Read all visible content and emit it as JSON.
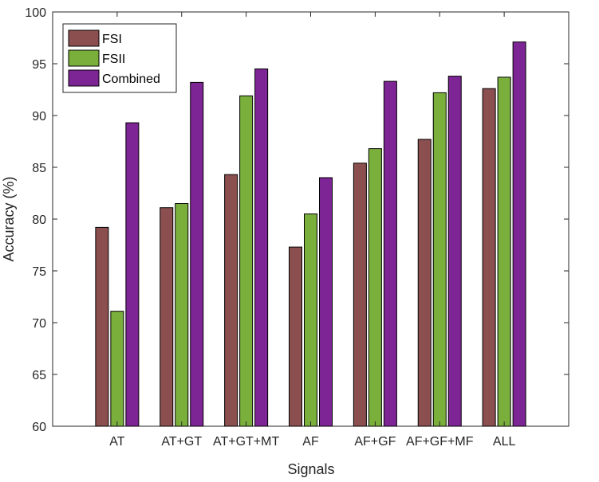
{
  "chart_data": {
    "type": "bar",
    "title": "",
    "xlabel": "Signals",
    "ylabel": "Accuracy (%)",
    "ylim": [
      60,
      100
    ],
    "yticks": [
      60,
      65,
      70,
      75,
      80,
      85,
      90,
      95,
      100
    ],
    "grid": false,
    "legend_position": "top-left",
    "categories": [
      "AT",
      "AT+GT",
      "AT+GT+MT",
      "AF",
      "AF+GF",
      "AF+GF+MF",
      "ALL"
    ],
    "series": [
      {
        "name": "FSI",
        "color": "#8B4F4F",
        "values": [
          79.2,
          81.1,
          84.3,
          77.3,
          85.4,
          87.7,
          92.6
        ]
      },
      {
        "name": "FSII",
        "color": "#7AAF3C",
        "values": [
          71.1,
          81.5,
          91.9,
          80.5,
          86.8,
          92.2,
          93.7
        ]
      },
      {
        "name": "Combined",
        "color": "#7E2596",
        "values": [
          89.3,
          93.2,
          94.5,
          84.0,
          93.3,
          93.8,
          97.1
        ]
      }
    ]
  }
}
